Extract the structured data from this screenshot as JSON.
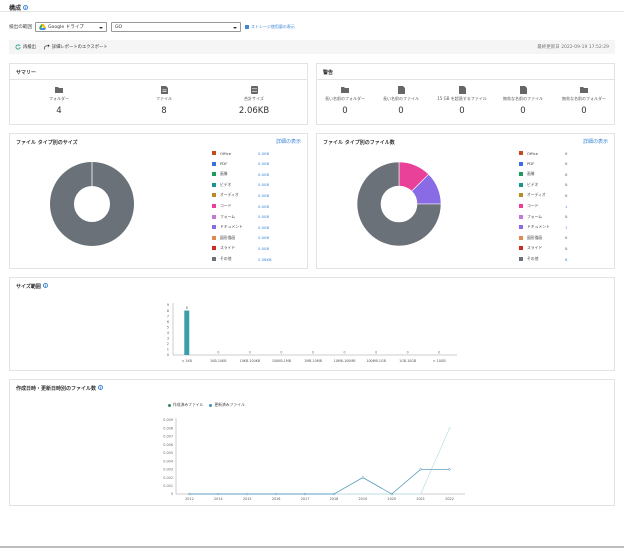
{
  "header": {
    "title": "構成"
  },
  "target": {
    "label": "検出の範囲",
    "source": "Google ドライブ",
    "scope": "GO",
    "link_text": "ストレージ使用量の表示"
  },
  "actions": {
    "refresh": "再検出",
    "export": "詳細レポートのエクスポート",
    "last_update": "最終更新日 2022-09-19 17:52:29"
  },
  "summary": {
    "title": "サマリー",
    "items": [
      {
        "icon": "folder-icon",
        "label": "フォルダー",
        "value": "4"
      },
      {
        "icon": "file-icon",
        "label": "ファイル",
        "value": "8"
      },
      {
        "icon": "database-icon",
        "label": "合計サイズ",
        "value": "2.06KB"
      }
    ]
  },
  "warnings": {
    "title": "警告",
    "items": [
      {
        "icon": "long-folder-name-icon",
        "label": "長い名前のフォルダー",
        "value": "0"
      },
      {
        "icon": "long-file-name-icon",
        "label": "長い名前のファイル",
        "value": "0"
      },
      {
        "icon": "large-file-icon",
        "label": "15 GB を超過するファイル",
        "value": "0"
      },
      {
        "icon": "invalid-file-name-icon",
        "label": "無効な名前のファイル",
        "value": "0"
      },
      {
        "icon": "invalid-folder-name-icon",
        "label": "無効な名前のフォルダー",
        "value": "0"
      }
    ]
  },
  "size_by_type": {
    "title": "ファイル タイプ別のサイズ",
    "detail_link": "詳細の表示",
    "legend": [
      {
        "name": "Office",
        "value": "0.00B",
        "color": "#c84a1b"
      },
      {
        "name": "PDF",
        "value": "0.00B",
        "color": "#3c6fe0"
      },
      {
        "name": "画像",
        "value": "0.00B",
        "color": "#1e9b5a"
      },
      {
        "name": "ビデオ",
        "value": "0.00B",
        "color": "#19958e"
      },
      {
        "name": "オーディオ",
        "value": "0.00B",
        "color": "#ba8a24"
      },
      {
        "name": "コード",
        "value": "0.00B",
        "color": "#e94199"
      },
      {
        "name": "フォーム",
        "value": "0.00B",
        "color": "#c07ad8"
      },
      {
        "name": "ドキュメント",
        "value": "0.00B",
        "color": "#8a6be6"
      },
      {
        "name": "図形描画",
        "value": "0.00B",
        "color": "#e08a52"
      },
      {
        "name": "スライド",
        "value": "0.00B",
        "color": "#cc2a22"
      },
      {
        "name": "その他",
        "value": "2.06KB",
        "color": "#6a7178"
      }
    ]
  },
  "count_by_type": {
    "title": "ファイル タイプ別のファイル数",
    "detail_link": "詳細の表示",
    "legend": [
      {
        "name": "Office",
        "value": "0",
        "color": "#c84a1b"
      },
      {
        "name": "PDF",
        "value": "0",
        "color": "#3c6fe0"
      },
      {
        "name": "画像",
        "value": "0",
        "color": "#1e9b5a"
      },
      {
        "name": "ビデオ",
        "value": "0",
        "color": "#19958e"
      },
      {
        "name": "オーディオ",
        "value": "0",
        "color": "#ba8a24"
      },
      {
        "name": "コード",
        "value": "1",
        "color": "#e94199"
      },
      {
        "name": "フォーム",
        "value": "0",
        "color": "#c07ad8"
      },
      {
        "name": "ドキュメント",
        "value": "1",
        "color": "#8a6be6"
      },
      {
        "name": "図形描画",
        "value": "0",
        "color": "#e08a52"
      },
      {
        "name": "スライド",
        "value": "0",
        "color": "#cc2a22"
      },
      {
        "name": "その他",
        "value": "6",
        "color": "#6a7178"
      }
    ]
  },
  "size_range": {
    "title": "サイズ範囲"
  },
  "timeline": {
    "title": "作成日時・更新日時別のファイル数",
    "legend_created": "作成済みファイル",
    "legend_updated": "更新済みファイル"
  },
  "chart_data": [
    {
      "type": "pie",
      "title": "ファイル タイプ別のサイズ",
      "categories": [
        "Office",
        "PDF",
        "画像",
        "ビデオ",
        "オーディオ",
        "コード",
        "フォーム",
        "ドキュメント",
        "図形描画",
        "スライド",
        "その他"
      ],
      "values": [
        0,
        0,
        0,
        0,
        0,
        0,
        0,
        0,
        0,
        0,
        2.06
      ],
      "colors": [
        "#c84a1b",
        "#3c6fe0",
        "#1e9b5a",
        "#19958e",
        "#ba8a24",
        "#e94199",
        "#c07ad8",
        "#8a6be6",
        "#e08a52",
        "#cc2a22",
        "#6a7178"
      ]
    },
    {
      "type": "pie",
      "title": "ファイル タイプ別のファイル数",
      "categories": [
        "Office",
        "PDF",
        "画像",
        "ビデオ",
        "オーディオ",
        "コード",
        "フォーム",
        "ドキュメント",
        "図形描画",
        "スライド",
        "その他"
      ],
      "values": [
        0,
        0,
        0,
        0,
        0,
        1,
        0,
        1,
        0,
        0,
        6
      ],
      "colors": [
        "#c84a1b",
        "#3c6fe0",
        "#1e9b5a",
        "#19958e",
        "#ba8a24",
        "#e94199",
        "#c07ad8",
        "#8a6be6",
        "#e08a52",
        "#cc2a22",
        "#6a7178"
      ]
    },
    {
      "type": "bar",
      "title": "サイズ範囲",
      "categories": [
        "< 1KB",
        "1KB-10KB",
        "10KB-100KB",
        "100KB-1MB",
        "1MB-10MB",
        "10MB-100MB",
        "100MB-1GB",
        "1GB-10GB",
        "> 10GB"
      ],
      "values": [
        8,
        0,
        0,
        0,
        0,
        0,
        0,
        0,
        0
      ],
      "yticks": [
        "0",
        "1",
        "2",
        "3",
        "4",
        "5",
        "6",
        "7",
        "8",
        "9"
      ],
      "ylim": [
        0,
        9
      ],
      "color": "#3a9fad"
    },
    {
      "type": "line",
      "title": "作成日時・更新日時別のファイル数",
      "x": [
        "2012",
        "2014",
        "2015",
        "2016",
        "2017",
        "2018",
        "2019",
        "2020",
        "2021",
        "2022"
      ],
      "yticks": [
        "0",
        "0.001",
        "0.002",
        "0.003",
        "0.004",
        "0.005",
        "0.006",
        "0.007",
        "0.008",
        "0.009"
      ],
      "ylim": [
        0,
        0.009
      ],
      "series": [
        {
          "name": "作成済みファイル",
          "color": "#b9dfe6",
          "values": [
            0,
            0,
            0,
            0,
            0,
            0,
            0,
            0,
            0,
            0.008
          ]
        },
        {
          "name": "更新済みファイル",
          "color": "#3f8fb5",
          "values": [
            0,
            0,
            0,
            0,
            0,
            0,
            0.002,
            0,
            0.003,
            0.003
          ]
        }
      ]
    }
  ]
}
